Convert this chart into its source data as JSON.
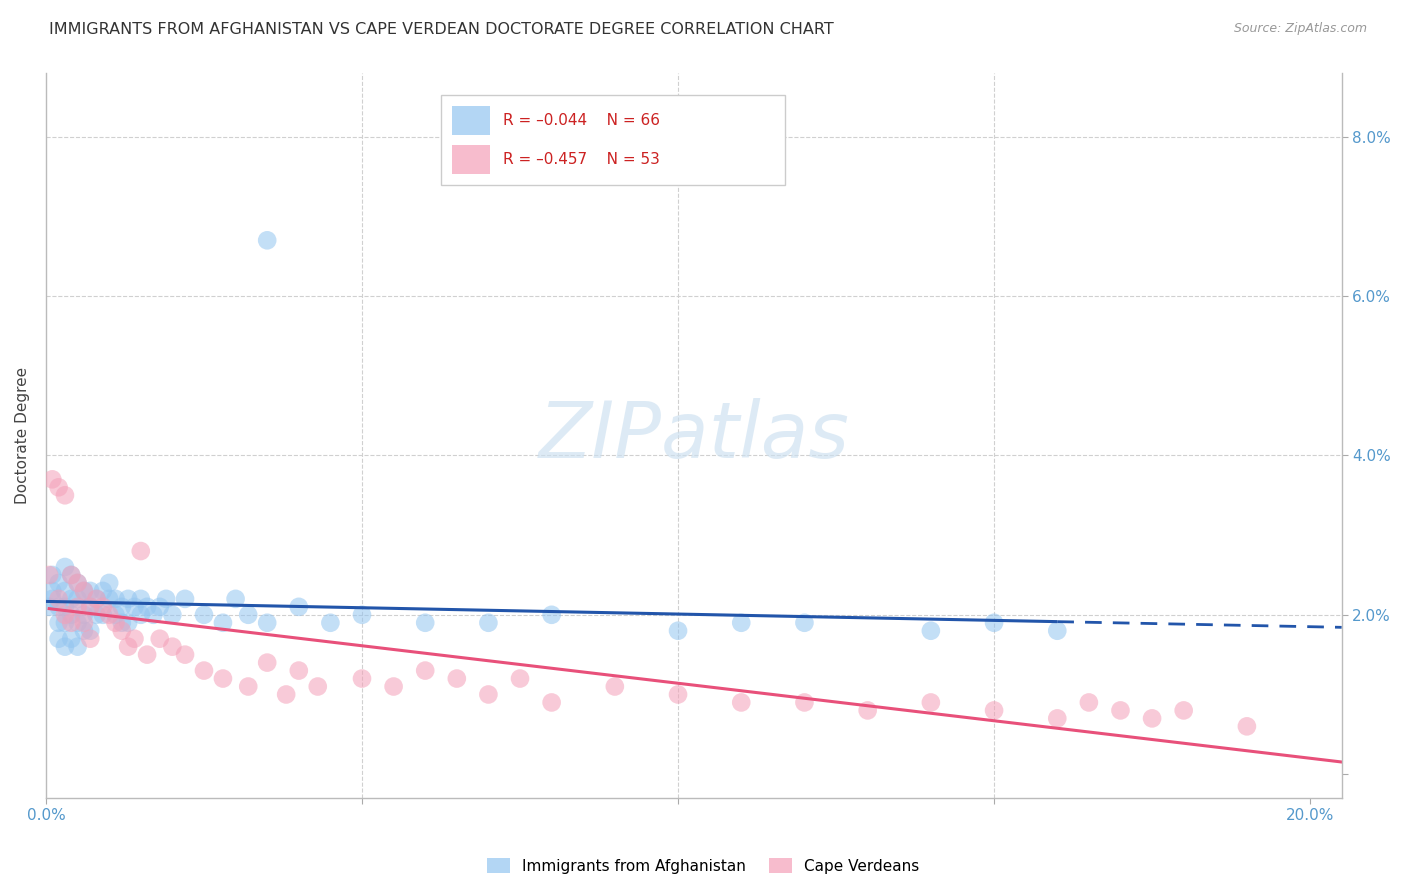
{
  "title": "IMMIGRANTS FROM AFGHANISTAN VS CAPE VERDEAN DOCTORATE DEGREE CORRELATION CHART",
  "source": "Source: ZipAtlas.com",
  "ylabel": "Doctorate Degree",
  "xlim": [
    0.0,
    0.205
  ],
  "ylim": [
    -0.003,
    0.088
  ],
  "xticks": [
    0.0,
    0.05,
    0.1,
    0.15,
    0.2
  ],
  "xtick_labels": [
    "0.0%",
    "",
    "",
    "",
    "20.0%"
  ],
  "yticks": [
    0.0,
    0.02,
    0.04,
    0.06,
    0.08
  ],
  "ytick_labels": [
    "",
    "2.0%",
    "4.0%",
    "6.0%",
    "8.0%"
  ],
  "afghanistan_color": "#93c5f0",
  "cape_verdean_color": "#f4a0b8",
  "afghanistan_line_color": "#2255aa",
  "cape_verdean_line_color": "#e8507a",
  "watermark": "ZIPatlas",
  "legend_afg_r": "R = –0.044",
  "legend_afg_n": "N = 66",
  "legend_cv_r": "R = –0.457",
  "legend_cv_n": "N = 53",
  "afghanistan_x": [
    0.0005,
    0.001,
    0.001,
    0.001,
    0.002,
    0.002,
    0.002,
    0.002,
    0.003,
    0.003,
    0.003,
    0.003,
    0.003,
    0.004,
    0.004,
    0.004,
    0.004,
    0.005,
    0.005,
    0.005,
    0.005,
    0.006,
    0.006,
    0.006,
    0.007,
    0.007,
    0.007,
    0.008,
    0.008,
    0.009,
    0.009,
    0.01,
    0.01,
    0.011,
    0.011,
    0.012,
    0.012,
    0.013,
    0.013,
    0.014,
    0.015,
    0.015,
    0.016,
    0.017,
    0.018,
    0.019,
    0.02,
    0.022,
    0.025,
    0.028,
    0.03,
    0.032,
    0.035,
    0.04,
    0.045,
    0.05,
    0.06,
    0.07,
    0.08,
    0.1,
    0.11,
    0.12,
    0.14,
    0.15,
    0.16,
    0.035
  ],
  "afghanistan_y": [
    0.021,
    0.023,
    0.025,
    0.022,
    0.024,
    0.021,
    0.019,
    0.017,
    0.026,
    0.023,
    0.021,
    0.019,
    0.016,
    0.025,
    0.022,
    0.02,
    0.017,
    0.024,
    0.022,
    0.019,
    0.016,
    0.023,
    0.02,
    0.018,
    0.023,
    0.021,
    0.018,
    0.022,
    0.02,
    0.023,
    0.02,
    0.024,
    0.022,
    0.022,
    0.02,
    0.021,
    0.019,
    0.022,
    0.019,
    0.021,
    0.022,
    0.02,
    0.021,
    0.02,
    0.021,
    0.022,
    0.02,
    0.022,
    0.02,
    0.019,
    0.022,
    0.02,
    0.019,
    0.021,
    0.019,
    0.02,
    0.019,
    0.019,
    0.02,
    0.018,
    0.019,
    0.019,
    0.018,
    0.019,
    0.018,
    0.067
  ],
  "cape_verdean_x": [
    0.0005,
    0.001,
    0.002,
    0.002,
    0.003,
    0.003,
    0.004,
    0.004,
    0.005,
    0.005,
    0.006,
    0.006,
    0.007,
    0.007,
    0.008,
    0.009,
    0.01,
    0.011,
    0.012,
    0.013,
    0.014,
    0.015,
    0.016,
    0.018,
    0.02,
    0.022,
    0.025,
    0.028,
    0.032,
    0.035,
    0.038,
    0.04,
    0.043,
    0.05,
    0.055,
    0.06,
    0.065,
    0.07,
    0.075,
    0.08,
    0.09,
    0.1,
    0.11,
    0.12,
    0.13,
    0.14,
    0.15,
    0.16,
    0.165,
    0.17,
    0.175,
    0.18,
    0.19
  ],
  "cape_verdean_y": [
    0.025,
    0.037,
    0.036,
    0.022,
    0.035,
    0.02,
    0.025,
    0.019,
    0.024,
    0.021,
    0.023,
    0.019,
    0.021,
    0.017,
    0.022,
    0.021,
    0.02,
    0.019,
    0.018,
    0.016,
    0.017,
    0.028,
    0.015,
    0.017,
    0.016,
    0.015,
    0.013,
    0.012,
    0.011,
    0.014,
    0.01,
    0.013,
    0.011,
    0.012,
    0.011,
    0.013,
    0.012,
    0.01,
    0.012,
    0.009,
    0.011,
    0.01,
    0.009,
    0.009,
    0.008,
    0.009,
    0.008,
    0.007,
    0.009,
    0.008,
    0.007,
    0.008,
    0.006
  ]
}
